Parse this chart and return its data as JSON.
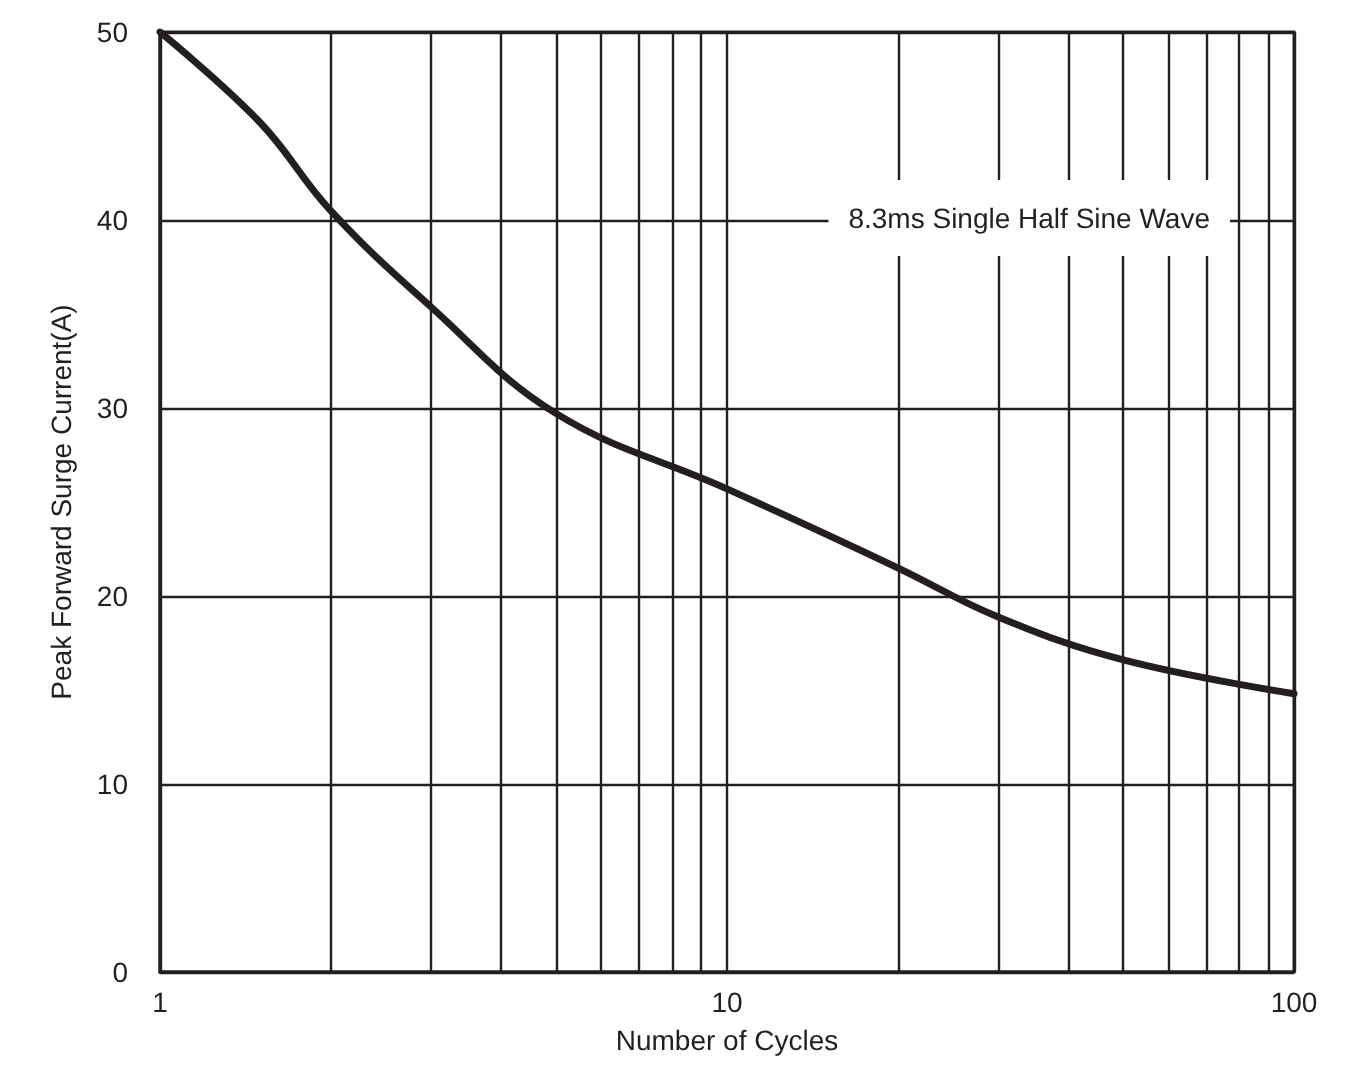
{
  "chart_data": {
    "type": "line",
    "xlabel": "Number of Cycles",
    "ylabel": "Peak Forward Surge Current(A)",
    "annotations": [
      "8.3ms Single Half Sine Wave"
    ],
    "x": [
      1,
      1.5,
      2,
      3,
      5,
      10,
      20,
      30,
      50,
      100
    ],
    "series": [
      {
        "color": "#231f20",
        "values": [
          50,
          45.2,
          40.5,
          35.4,
          29.7,
          25.7,
          21.5,
          18.9,
          16.6,
          14.8
        ]
      }
    ],
    "xlim": [
      1,
      100
    ],
    "ylim": [
      0,
      50
    ],
    "xticks": [
      1,
      {
        "value": 2,
        "label": null
      },
      {
        "value": 3,
        "label": null
      },
      {
        "value": 4,
        "label": null
      },
      {
        "value": 5,
        "label": null
      },
      {
        "value": 6,
        "label": null
      },
      {
        "value": 7,
        "label": null
      },
      {
        "value": 8,
        "label": null
      },
      {
        "value": 9,
        "label": null
      },
      10,
      {
        "value": 20,
        "label": null
      },
      {
        "value": 30,
        "label": null
      },
      {
        "value": 40,
        "label": null
      },
      {
        "value": 50,
        "label": null
      },
      {
        "value": 60,
        "label": null
      },
      {
        "value": 70,
        "label": null
      },
      {
        "value": 80,
        "label": null
      },
      {
        "value": 90,
        "label": null
      },
      100
    ],
    "yticks": [
      0,
      10,
      20,
      30,
      40,
      50
    ],
    "log": "x",
    "grid": true,
    "marker": "none",
    "line_style": "solid"
  }
}
